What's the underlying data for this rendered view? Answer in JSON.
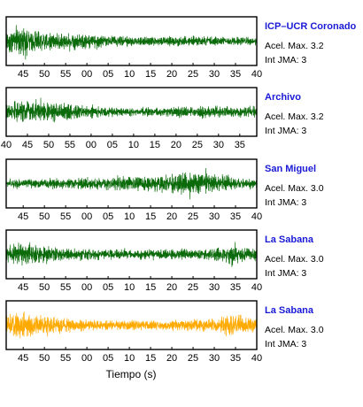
{
  "chart_data": {
    "type": "line",
    "xlabel": "Tiempo (s)",
    "xlim": [
      41,
      100
    ],
    "panels": [
      {
        "station": "ICP–UCR Coronado",
        "accel_label": "Acel. Max. 3.2",
        "int_label": "Int JMA: 3",
        "color": "#0b6b0b",
        "envelope": [
          [
            41,
            0.55
          ],
          [
            43,
            0.9
          ],
          [
            45,
            0.85
          ],
          [
            50,
            0.6
          ],
          [
            60,
            0.45
          ],
          [
            70,
            0.32
          ],
          [
            80,
            0.3
          ],
          [
            90,
            0.28
          ],
          [
            100,
            0.25
          ]
        ],
        "ticks": [
          {
            "x": 45,
            "label": "45"
          },
          {
            "x": 50,
            "label": "50"
          },
          {
            "x": 55,
            "label": "55"
          },
          {
            "x": 60,
            "label": "00"
          },
          {
            "x": 65,
            "label": "05"
          },
          {
            "x": 70,
            "label": "10"
          },
          {
            "x": 75,
            "label": "15"
          },
          {
            "x": 80,
            "label": "20"
          },
          {
            "x": 85,
            "label": "25"
          },
          {
            "x": 90,
            "label": "30"
          },
          {
            "x": 95,
            "label": "35"
          },
          {
            "x": 100,
            "label": "40"
          }
        ]
      },
      {
        "station": "Archivo",
        "accel_label": "Acel. Max. 3.2",
        "int_label": "Int JMA: 3",
        "color": "#0b6b0b",
        "envelope": [
          [
            41,
            0.6
          ],
          [
            45,
            0.75
          ],
          [
            52,
            0.6
          ],
          [
            58,
            0.45
          ],
          [
            65,
            0.3
          ],
          [
            72,
            0.25
          ],
          [
            80,
            0.3
          ],
          [
            90,
            0.35
          ],
          [
            100,
            0.3
          ]
        ],
        "ticks": [
          {
            "x": 41,
            "label": "40"
          },
          {
            "x": 46,
            "label": "45"
          },
          {
            "x": 51,
            "label": "50"
          },
          {
            "x": 56,
            "label": "55"
          },
          {
            "x": 61,
            "label": "00"
          },
          {
            "x": 66,
            "label": "05"
          },
          {
            "x": 71,
            "label": "10"
          },
          {
            "x": 76,
            "label": "15"
          },
          {
            "x": 81,
            "label": "20"
          },
          {
            "x": 86,
            "label": "25"
          },
          {
            "x": 91,
            "label": "30"
          },
          {
            "x": 96,
            "label": "35"
          }
        ]
      },
      {
        "station": "San Miguel",
        "accel_label": "Acel. Max. 3.0",
        "int_label": "Int JMA: 3",
        "color": "#0b6b0b",
        "envelope": [
          [
            41,
            0.25
          ],
          [
            50,
            0.3
          ],
          [
            60,
            0.35
          ],
          [
            70,
            0.4
          ],
          [
            78,
            0.55
          ],
          [
            83,
            0.8
          ],
          [
            86,
            0.75
          ],
          [
            90,
            0.6
          ],
          [
            95,
            0.35
          ],
          [
            100,
            0.3
          ]
        ],
        "ticks": [
          {
            "x": 45,
            "label": "45"
          },
          {
            "x": 50,
            "label": "50"
          },
          {
            "x": 55,
            "label": "55"
          },
          {
            "x": 60,
            "label": "00"
          },
          {
            "x": 65,
            "label": "05"
          },
          {
            "x": 70,
            "label": "10"
          },
          {
            "x": 75,
            "label": "15"
          },
          {
            "x": 80,
            "label": "20"
          },
          {
            "x": 85,
            "label": "25"
          },
          {
            "x": 90,
            "label": "30"
          },
          {
            "x": 95,
            "label": "35"
          },
          {
            "x": 100,
            "label": "40"
          }
        ]
      },
      {
        "station": "La Sabana",
        "accel_label": "Acel. Max. 3.0",
        "int_label": "Int JMA: 3",
        "color": "#0b6b0b",
        "envelope": [
          [
            41,
            0.45
          ],
          [
            44,
            0.8
          ],
          [
            47,
            0.6
          ],
          [
            55,
            0.35
          ],
          [
            65,
            0.3
          ],
          [
            75,
            0.28
          ],
          [
            85,
            0.3
          ],
          [
            92,
            0.45
          ],
          [
            94,
            0.75
          ],
          [
            97,
            0.5
          ],
          [
            100,
            0.35
          ]
        ],
        "ticks": [
          {
            "x": 45,
            "label": "45"
          },
          {
            "x": 50,
            "label": "50"
          },
          {
            "x": 55,
            "label": "55"
          },
          {
            "x": 60,
            "label": "00"
          },
          {
            "x": 65,
            "label": "05"
          },
          {
            "x": 70,
            "label": "10"
          },
          {
            "x": 75,
            "label": "15"
          },
          {
            "x": 80,
            "label": "20"
          },
          {
            "x": 85,
            "label": "25"
          },
          {
            "x": 90,
            "label": "30"
          },
          {
            "x": 95,
            "label": "35"
          },
          {
            "x": 100,
            "label": "40"
          }
        ]
      },
      {
        "station": "La Sabana",
        "accel_label": "Acel. Max. 3.0",
        "int_label": "Int JMA: 3",
        "color": "#ffaa00",
        "envelope": [
          [
            41,
            0.55
          ],
          [
            44,
            0.9
          ],
          [
            47,
            0.7
          ],
          [
            55,
            0.4
          ],
          [
            65,
            0.32
          ],
          [
            75,
            0.3
          ],
          [
            85,
            0.32
          ],
          [
            92,
            0.5
          ],
          [
            94,
            0.85
          ],
          [
            97,
            0.55
          ],
          [
            100,
            0.4
          ]
        ],
        "ticks": [
          {
            "x": 45,
            "label": "45"
          },
          {
            "x": 50,
            "label": "50"
          },
          {
            "x": 55,
            "label": "55"
          },
          {
            "x": 60,
            "label": "00"
          },
          {
            "x": 65,
            "label": "05"
          },
          {
            "x": 70,
            "label": "10"
          },
          {
            "x": 75,
            "label": "15"
          },
          {
            "x": 80,
            "label": "20"
          },
          {
            "x": 85,
            "label": "25"
          },
          {
            "x": 90,
            "label": "30"
          },
          {
            "x": 95,
            "label": "35"
          },
          {
            "x": 100,
            "label": "40"
          }
        ]
      }
    ]
  }
}
